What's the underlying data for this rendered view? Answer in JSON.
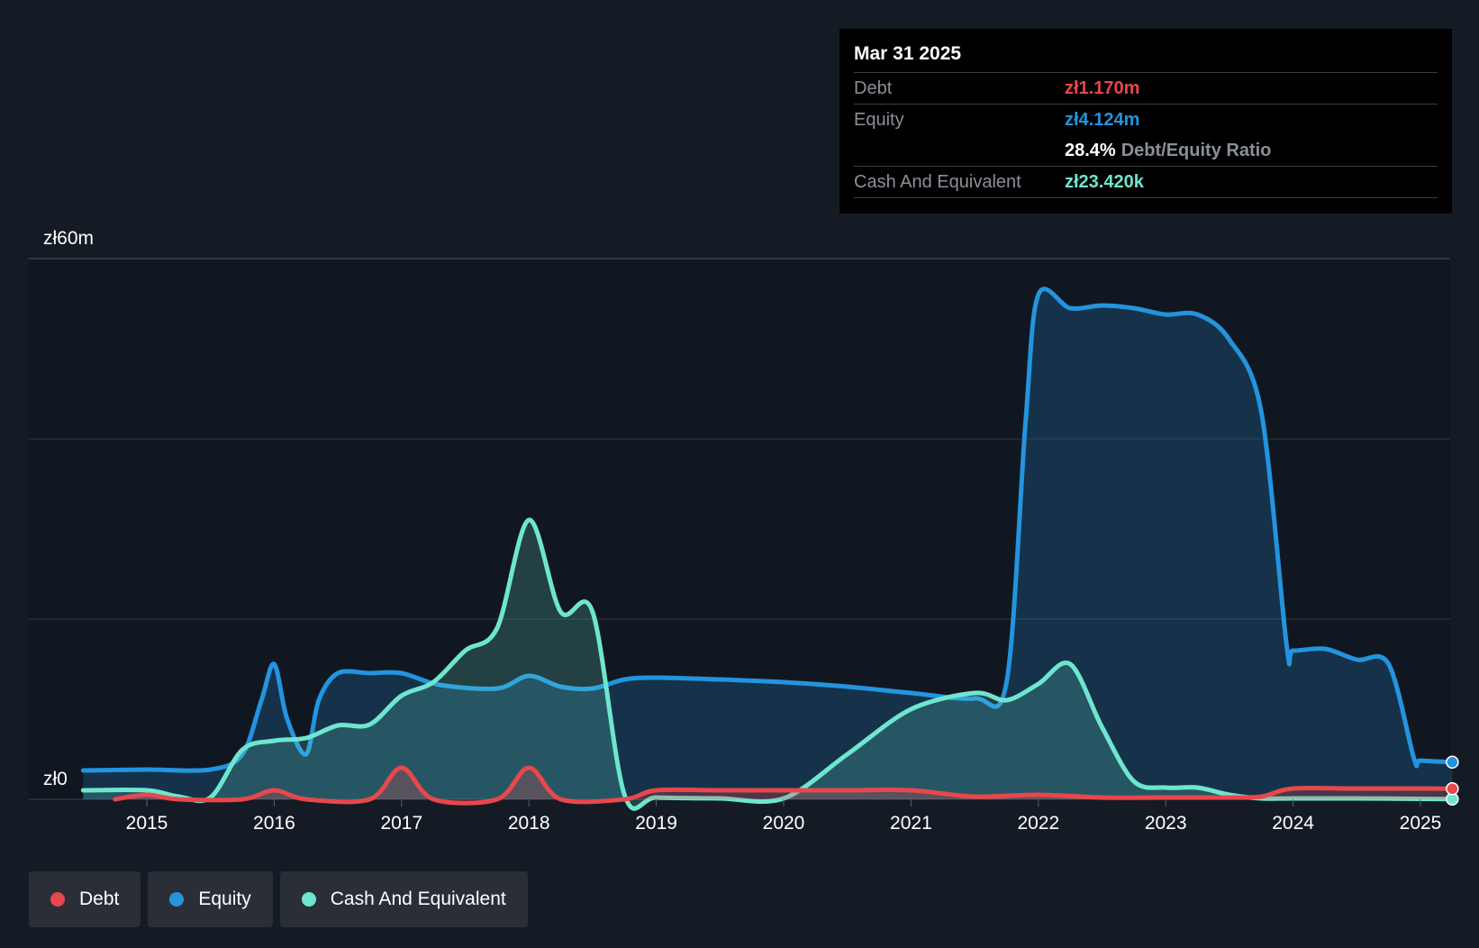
{
  "colors": {
    "background": "#151b24",
    "debt": "#e8474c",
    "equity": "#2394df",
    "cash": "#6ee6cf",
    "grid": "#3a3f48"
  },
  "tooltip": {
    "date": "Mar 31 2025",
    "debt_label": "Debt",
    "debt_value": "zł1.170m",
    "equity_label": "Equity",
    "equity_value": "zł4.124m",
    "ratio_value": "28.4%",
    "ratio_label": "Debt/Equity Ratio",
    "cash_label": "Cash And Equivalent",
    "cash_value": "zł23.420k"
  },
  "legend": [
    {
      "name": "Debt",
      "color": "#e8474c"
    },
    {
      "name": "Equity",
      "color": "#2394df"
    },
    {
      "name": "Cash And Equivalent",
      "color": "#6ee6cf"
    }
  ],
  "chart_data": {
    "type": "area",
    "y_unit": "zł m",
    "ylim": [
      0,
      60
    ],
    "xlim": [
      2014.5,
      2025.25
    ],
    "y_tick_labels": [
      {
        "value": 60,
        "label": "zł60m"
      },
      {
        "value": 0,
        "label": "zł0"
      }
    ],
    "gridlines": [
      60,
      40,
      20,
      0
    ],
    "x_ticks": [
      2015,
      2016,
      2017,
      2018,
      2019,
      2020,
      2021,
      2022,
      2023,
      2024,
      2025
    ],
    "series": [
      {
        "name": "Equity",
        "color": "#2394df",
        "points": [
          [
            2014.5,
            3.2
          ],
          [
            2015.0,
            3.3
          ],
          [
            2015.5,
            3.3
          ],
          [
            2015.75,
            5.0
          ],
          [
            2015.9,
            11.0
          ],
          [
            2016.0,
            15.0
          ],
          [
            2016.1,
            9.0
          ],
          [
            2016.25,
            5.0
          ],
          [
            2016.35,
            11.0
          ],
          [
            2016.5,
            14.0
          ],
          [
            2016.75,
            14.0
          ],
          [
            2017.0,
            14.0
          ],
          [
            2017.3,
            12.7
          ],
          [
            2017.75,
            12.3
          ],
          [
            2018.0,
            13.7
          ],
          [
            2018.25,
            12.5
          ],
          [
            2018.5,
            12.3
          ],
          [
            2018.75,
            13.3
          ],
          [
            2019.0,
            13.5
          ],
          [
            2019.5,
            13.3
          ],
          [
            2020.0,
            13.0
          ],
          [
            2020.5,
            12.5
          ],
          [
            2021.0,
            11.8
          ],
          [
            2021.5,
            11.2
          ],
          [
            2021.75,
            13.0
          ],
          [
            2021.9,
            42.0
          ],
          [
            2022.0,
            56.0
          ],
          [
            2022.25,
            54.5
          ],
          [
            2022.5,
            54.8
          ],
          [
            2022.75,
            54.5
          ],
          [
            2023.0,
            53.8
          ],
          [
            2023.25,
            53.8
          ],
          [
            2023.5,
            51.0
          ],
          [
            2023.75,
            43.0
          ],
          [
            2023.95,
            17.0
          ],
          [
            2024.0,
            16.5
          ],
          [
            2024.25,
            16.7
          ],
          [
            2024.5,
            15.5
          ],
          [
            2024.75,
            15.0
          ],
          [
            2024.95,
            4.5
          ],
          [
            2025.0,
            4.3
          ],
          [
            2025.25,
            4.124
          ]
        ]
      },
      {
        "name": "Cash And Equivalent",
        "color": "#6ee6cf",
        "points": [
          [
            2014.5,
            1.0
          ],
          [
            2015.0,
            1.0
          ],
          [
            2015.25,
            0.3
          ],
          [
            2015.5,
            0.2
          ],
          [
            2015.75,
            5.5
          ],
          [
            2016.0,
            6.5
          ],
          [
            2016.25,
            6.8
          ],
          [
            2016.5,
            8.2
          ],
          [
            2016.75,
            8.3
          ],
          [
            2017.0,
            11.5
          ],
          [
            2017.25,
            13.0
          ],
          [
            2017.5,
            16.5
          ],
          [
            2017.75,
            19.0
          ],
          [
            2018.0,
            31.0
          ],
          [
            2018.25,
            20.8
          ],
          [
            2018.5,
            20.8
          ],
          [
            2018.75,
            0.5
          ],
          [
            2019.0,
            0.2
          ],
          [
            2019.5,
            0.1
          ],
          [
            2020.0,
            0.1
          ],
          [
            2020.5,
            5.0
          ],
          [
            2021.0,
            10.0
          ],
          [
            2021.5,
            11.8
          ],
          [
            2021.75,
            11.0
          ],
          [
            2022.0,
            12.8
          ],
          [
            2022.25,
            15.0
          ],
          [
            2022.5,
            8.0
          ],
          [
            2022.75,
            2.0
          ],
          [
            2023.0,
            1.3
          ],
          [
            2023.25,
            1.3
          ],
          [
            2023.5,
            0.5
          ],
          [
            2023.75,
            0.1
          ],
          [
            2024.0,
            0.1
          ],
          [
            2024.5,
            0.1
          ],
          [
            2025.0,
            0.05
          ],
          [
            2025.25,
            0.023
          ]
        ]
      },
      {
        "name": "Debt",
        "color": "#e8474c",
        "points": [
          [
            2014.75,
            0.0
          ],
          [
            2015.0,
            0.5
          ],
          [
            2015.25,
            0.0
          ],
          [
            2015.75,
            0.0
          ],
          [
            2016.0,
            1.0
          ],
          [
            2016.25,
            0.0
          ],
          [
            2016.75,
            0.0
          ],
          [
            2017.0,
            3.5
          ],
          [
            2017.25,
            0.0
          ],
          [
            2017.75,
            0.0
          ],
          [
            2018.0,
            3.5
          ],
          [
            2018.25,
            0.0
          ],
          [
            2018.75,
            0.0
          ],
          [
            2019.0,
            1.0
          ],
          [
            2019.5,
            1.0
          ],
          [
            2020.0,
            1.0
          ],
          [
            2020.5,
            1.0
          ],
          [
            2021.0,
            1.0
          ],
          [
            2021.5,
            0.3
          ],
          [
            2022.0,
            0.5
          ],
          [
            2022.5,
            0.2
          ],
          [
            2023.0,
            0.2
          ],
          [
            2023.5,
            0.2
          ],
          [
            2023.75,
            0.3
          ],
          [
            2024.0,
            1.2
          ],
          [
            2024.5,
            1.2
          ],
          [
            2025.0,
            1.2
          ],
          [
            2025.25,
            1.17
          ]
        ]
      }
    ]
  }
}
